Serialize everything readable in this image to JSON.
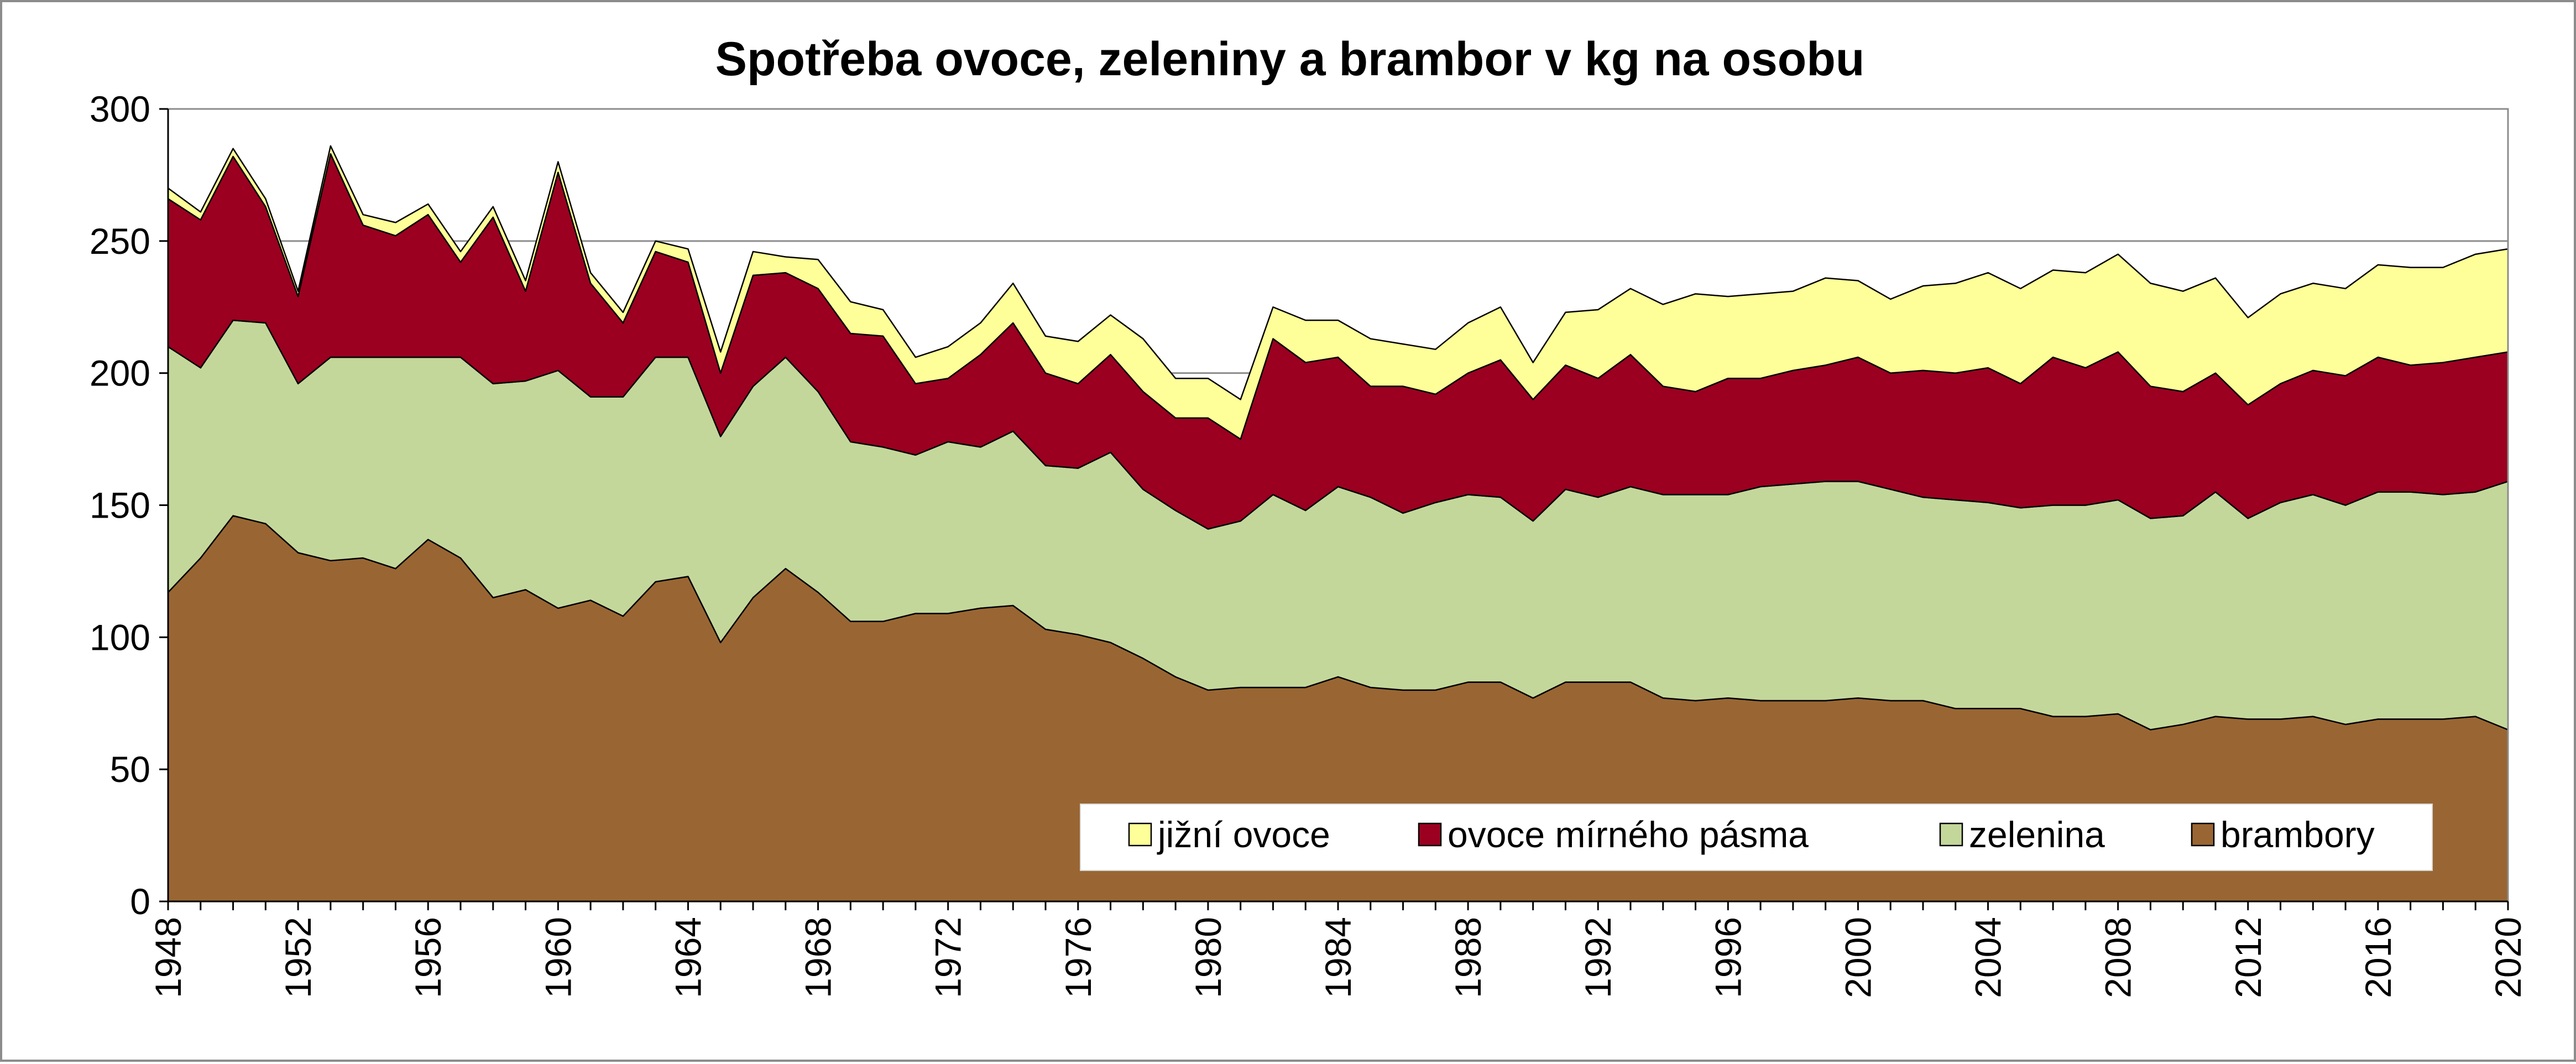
{
  "chart_data": {
    "type": "area",
    "stacked": true,
    "title": "Spotřeba ovoce, zeleniny a brambor v kg na osobu",
    "xlabel": "",
    "ylabel": "",
    "ylim": [
      0,
      300
    ],
    "yticks": [
      "0",
      "50",
      "100",
      "150",
      "200",
      "250",
      "300"
    ],
    "xtick_labels": [
      "1948",
      "1952",
      "1956",
      "1960",
      "1964",
      "1968",
      "1972",
      "1976",
      "1980",
      "1984",
      "1988",
      "1992",
      "1996",
      "2000",
      "2004",
      "2008",
      "2012",
      "2016",
      "2020"
    ],
    "grid": "horizontal",
    "legend_position": "bottom-right inside",
    "x": [
      1948,
      1949,
      1950,
      1951,
      1952,
      1953,
      1954,
      1955,
      1956,
      1957,
      1958,
      1959,
      1960,
      1961,
      1962,
      1963,
      1964,
      1965,
      1966,
      1967,
      1968,
      1969,
      1970,
      1971,
      1972,
      1973,
      1974,
      1975,
      1976,
      1977,
      1978,
      1979,
      1980,
      1981,
      1982,
      1983,
      1984,
      1985,
      1986,
      1987,
      1988,
      1989,
      1990,
      1991,
      1992,
      1993,
      1994,
      1995,
      1996,
      1997,
      1998,
      1999,
      2000,
      2001,
      2002,
      2003,
      2004,
      2005,
      2006,
      2007,
      2008,
      2009,
      2010,
      2011,
      2012,
      2013,
      2014,
      2015,
      2016,
      2017,
      2018,
      2019,
      2020
    ],
    "series": [
      {
        "name": "brambory",
        "color": "#996633",
        "values": [
          117,
          130,
          146,
          143,
          132,
          129,
          130,
          126,
          137,
          130,
          115,
          118,
          111,
          114,
          108,
          121,
          123,
          98,
          115,
          126,
          117,
          106,
          106,
          109,
          109,
          111,
          112,
          103,
          101,
          98,
          92,
          85,
          80,
          81,
          81,
          81,
          85,
          81,
          80,
          80,
          83,
          83,
          77,
          83,
          83,
          83,
          77,
          76,
          77,
          76,
          76,
          76,
          77,
          76,
          76,
          73,
          73,
          73,
          70,
          70,
          71,
          65,
          67,
          70,
          69,
          69,
          70,
          67,
          69,
          69,
          69,
          70,
          65
        ]
      },
      {
        "name": "zelenina",
        "color": "#c4d79b",
        "values": [
          93,
          72,
          74,
          76,
          64,
          77,
          76,
          80,
          69,
          76,
          81,
          79,
          90,
          77,
          83,
          85,
          83,
          78,
          80,
          80,
          76,
          68,
          66,
          60,
          65,
          61,
          66,
          62,
          63,
          72,
          64,
          63,
          61,
          63,
          73,
          67,
          72,
          72,
          67,
          71,
          71,
          70,
          67,
          73,
          70,
          74,
          77,
          78,
          77,
          81,
          82,
          83,
          82,
          80,
          77,
          79,
          78,
          76,
          80,
          80,
          81,
          80,
          79,
          85,
          76,
          82,
          84,
          83,
          86,
          86,
          85,
          85,
          94
        ]
      },
      {
        "name": "ovoce mírného pásma",
        "color": "#9b0020",
        "values": [
          56,
          56,
          62,
          44,
          33,
          77,
          50,
          46,
          54,
          36,
          63,
          34,
          75,
          43,
          28,
          40,
          36,
          24,
          42,
          32,
          39,
          41,
          42,
          27,
          24,
          35,
          41,
          35,
          32,
          37,
          37,
          35,
          42,
          31,
          59,
          56,
          49,
          42,
          48,
          41,
          46,
          52,
          46,
          47,
          45,
          50,
          41,
          39,
          44,
          41,
          43,
          44,
          47,
          44,
          48,
          48,
          51,
          47,
          56,
          52,
          56,
          50,
          47,
          45,
          43,
          45,
          47,
          49,
          51,
          48,
          50,
          51,
          49
        ]
      },
      {
        "name": "jižní ovoce",
        "color": "#ffff99",
        "values": [
          4,
          3,
          3,
          3,
          2,
          3,
          4,
          5,
          4,
          4,
          4,
          4,
          4,
          4,
          4,
          4,
          5,
          8,
          9,
          6,
          11,
          12,
          10,
          10,
          12,
          12,
          15,
          14,
          16,
          15,
          20,
          15,
          15,
          15,
          12,
          16,
          14,
          18,
          16,
          17,
          19,
          20,
          14,
          20,
          26,
          25,
          31,
          37,
          31,
          32,
          30,
          33,
          29,
          28,
          32,
          34,
          36,
          36,
          33,
          36,
          37,
          39,
          38,
          36,
          33,
          34,
          33,
          33,
          35,
          37,
          36,
          39,
          39
        ]
      }
    ]
  }
}
